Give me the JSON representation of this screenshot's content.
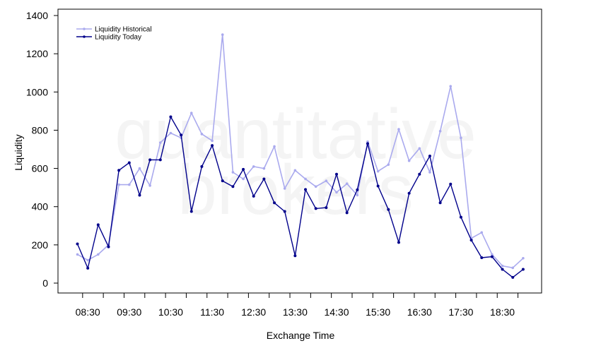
{
  "chart_data": {
    "type": "line",
    "watermark": [
      "quantitative",
      "brokers"
    ],
    "xlabel": "Exchange Time",
    "ylabel": "Liquidity",
    "ylim": [
      0,
      1400
    ],
    "yticks": [
      0,
      200,
      400,
      600,
      800,
      1000,
      1200,
      1400
    ],
    "x": [
      "08:15",
      "08:30",
      "08:45",
      "09:00",
      "09:15",
      "09:30",
      "09:45",
      "10:00",
      "10:15",
      "10:30",
      "10:45",
      "11:00",
      "11:15",
      "11:30",
      "11:45",
      "12:00",
      "12:15",
      "12:30",
      "12:45",
      "13:00",
      "13:15",
      "13:30",
      "13:45",
      "14:00",
      "14:15",
      "14:30",
      "14:45",
      "15:00",
      "15:15",
      "15:30",
      "15:45",
      "16:00",
      "16:15",
      "16:30",
      "16:45",
      "17:00",
      "17:15",
      "17:30",
      "17:45",
      "18:00",
      "18:15",
      "18:30",
      "18:45",
      "19:00"
    ],
    "xtick_labels": [
      "08:30",
      "09:30",
      "10:30",
      "11:30",
      "12:30",
      "13:30",
      "14:30",
      "15:30",
      "16:30",
      "17:30",
      "18:30"
    ],
    "legend_position": "top-left",
    "grid": false,
    "series": [
      {
        "name": "Liquidity Historical",
        "color": "#aaaaee",
        "values": [
          150,
          120,
          150,
          200,
          515,
          515,
          600,
          510,
          735,
          785,
          760,
          890,
          780,
          745,
          1300,
          580,
          545,
          610,
          600,
          715,
          495,
          590,
          545,
          505,
          535,
          475,
          520,
          460,
          740,
          585,
          620,
          805,
          640,
          705,
          580,
          795,
          1030,
          760,
          235,
          265,
          150,
          90,
          80,
          130
        ]
      },
      {
        "name": "Liquidity Today",
        "color": "#00008b",
        "values": [
          205,
          78,
          305,
          190,
          590,
          630,
          460,
          645,
          645,
          870,
          775,
          375,
          610,
          720,
          535,
          505,
          595,
          455,
          545,
          420,
          375,
          143,
          490,
          390,
          395,
          570,
          368,
          488,
          730,
          508,
          385,
          213,
          470,
          570,
          665,
          420,
          518,
          345,
          225,
          133,
          138,
          72,
          30,
          72
        ]
      }
    ]
  }
}
